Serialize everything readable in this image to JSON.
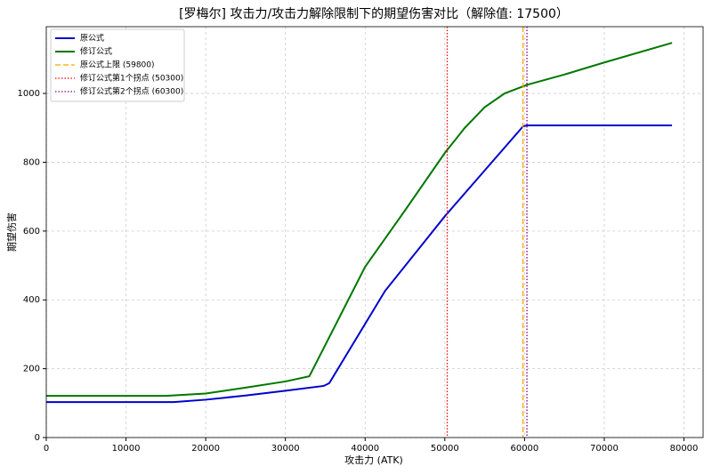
{
  "chart_data": {
    "type": "line",
    "title": "[罗梅尔] 攻击力/攻击力解除限制下的期望伤害对比（解除值: 17500）",
    "x_label": "攻击力 (ATK)",
    "y_label": "期望伤害",
    "series": [
      {
        "name": "原公式",
        "color": "#0000cc",
        "x": [
          0,
          16000,
          20000,
          25000,
          30000,
          34800,
          35500,
          42500,
          50000,
          59800,
          60300,
          78500
        ],
        "values": [
          103,
          103,
          110,
          122,
          136,
          150,
          158,
          426,
          643,
          904,
          907,
          907
        ]
      },
      {
        "name": "修订公式",
        "color": "#007700",
        "x": [
          0,
          15000,
          20000,
          25000,
          30000,
          33000,
          40000,
          45000,
          50000,
          52500,
          55000,
          57500,
          60300,
          65000,
          70000,
          78500
        ],
        "values": [
          121,
          121,
          128,
          145,
          163,
          178,
          496,
          660,
          827,
          900,
          960,
          1000,
          1025,
          1055,
          1090,
          1147
        ]
      }
    ],
    "vlines": [
      {
        "name": "原公式上限 (59800)",
        "color": "#ffa500",
        "x": 59800,
        "style": "dashed"
      },
      {
        "name": "修订公式第1个拐点 (50300)",
        "color": "#ff0000",
        "x": 50300,
        "style": "dotted"
      },
      {
        "name": "修订公式第2个拐点 (60300)",
        "color": "#800080",
        "x": 60300,
        "style": "dotted"
      }
    ],
    "xlim": [
      0,
      82400
    ],
    "ylim": [
      0,
      1194
    ],
    "xticks": [
      0,
      10000,
      20000,
      30000,
      40000,
      50000,
      60000,
      70000,
      80000
    ],
    "yticks": [
      0,
      200,
      400,
      600,
      800,
      1000
    ],
    "grid": true,
    "legend": "upper left"
  }
}
